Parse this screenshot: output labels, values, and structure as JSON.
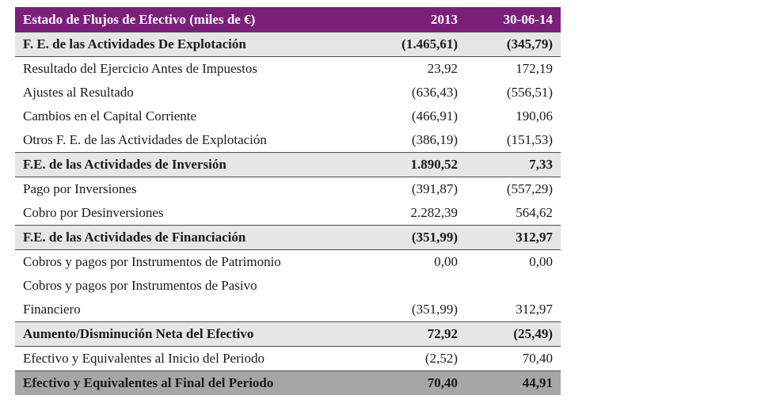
{
  "header": {
    "title": "Estado de Flujos de Efectivo (miles de €)",
    "col1": "2013",
    "col2": "30-06-14"
  },
  "rows": [
    {
      "type": "section",
      "label": "F. E. de las Actividades De Explotación",
      "v1": "(1.465,61)",
      "v2": "(345,79)"
    },
    {
      "type": "item",
      "label": "Resultado del Ejercicio Antes de Impuestos",
      "v1": "23,92",
      "v2": "172,19"
    },
    {
      "type": "item",
      "label": "Ajustes al Resultado",
      "v1": "(636,43)",
      "v2": "(556,51)"
    },
    {
      "type": "item",
      "label": "Cambios en el Capital Corriente",
      "v1": "(466,91)",
      "v2": "190,06"
    },
    {
      "type": "item",
      "label": "Otros F. E. de las Actividades de Explotación",
      "v1": "(386,19)",
      "v2": "(151,53)"
    },
    {
      "type": "section",
      "label": "F.E. de las Actividades de Inversión",
      "v1": "1.890,52",
      "v2": "7,33"
    },
    {
      "type": "item",
      "label": "Pago por Inversiones",
      "v1": "(391,87)",
      "v2": "(557,29)"
    },
    {
      "type": "item",
      "label": "Cobro por Desinversiones",
      "v1": "2.282,39",
      "v2": "564,62"
    },
    {
      "type": "section",
      "label": "F.E. de las Actividades de Financiación",
      "v1": "(351,99)",
      "v2": "312,97"
    },
    {
      "type": "item",
      "label": "Cobros y pagos por Instrumentos de Patrimonio",
      "v1": "0,00",
      "v2": "0,00"
    },
    {
      "type": "item-multi",
      "label_line1": "Cobros y pagos por Instrumentos de Pasivo",
      "label_line2": "Financiero",
      "v1": "(351,99)",
      "v2": "312,97"
    },
    {
      "type": "section",
      "label": "Aumento/Disminución Neta del Efectivo",
      "v1": "72,92",
      "v2": "(25,49)"
    },
    {
      "type": "item",
      "label": "Efectivo y Equivalentes al Inicio del Periodo",
      "v1": "(2,52)",
      "v2": "70,40"
    },
    {
      "type": "total",
      "label": "Efectivo y Equivalentes al Final del Periodo",
      "v1": "70,40",
      "v2": "44,91"
    }
  ]
}
